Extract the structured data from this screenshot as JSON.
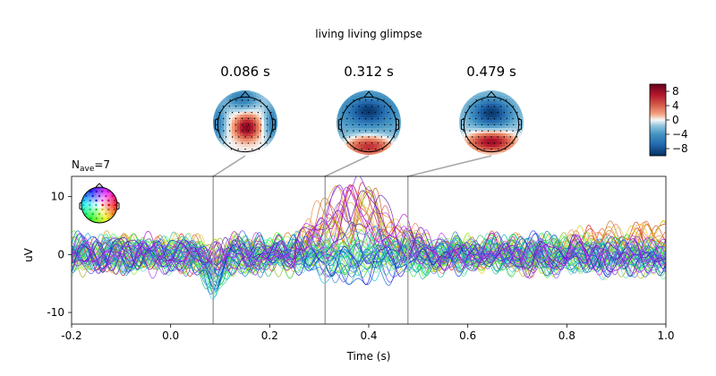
{
  "chart_data": {
    "type": "line",
    "title": "living living glimpse",
    "nave_label": "N",
    "nave_sub": "ave",
    "nave_value": "=7",
    "xlabel": "Time (s)",
    "ylabel": "uV",
    "xlim": [
      -0.2,
      1.0
    ],
    "ylim": [
      -12,
      13.5
    ],
    "xticks": [
      -0.2,
      0.0,
      0.2,
      0.4,
      0.6,
      0.8,
      1.0
    ],
    "xtick_labels": [
      "-0.2",
      "0.0",
      "0.2",
      "0.4",
      "0.6",
      "0.8",
      "1.0"
    ],
    "yticks": [
      -10,
      0,
      10
    ],
    "ytick_labels": [
      "-10",
      "0",
      "10"
    ],
    "grid": false,
    "n_channels": 59,
    "topomap_times": [
      0.086,
      0.312,
      0.479
    ],
    "topomap_labels": [
      "0.086 s",
      "0.312 s",
      "0.479 s"
    ],
    "colorbar": {
      "ticks": [
        8,
        4,
        0,
        -4,
        -8
      ],
      "tick_labels": [
        "8",
        "4",
        "0",
        "−4",
        "−8"
      ],
      "range": [
        -10,
        10
      ],
      "colormap": "RdBu_r"
    },
    "marker_line_color": "#a8a8a8"
  }
}
